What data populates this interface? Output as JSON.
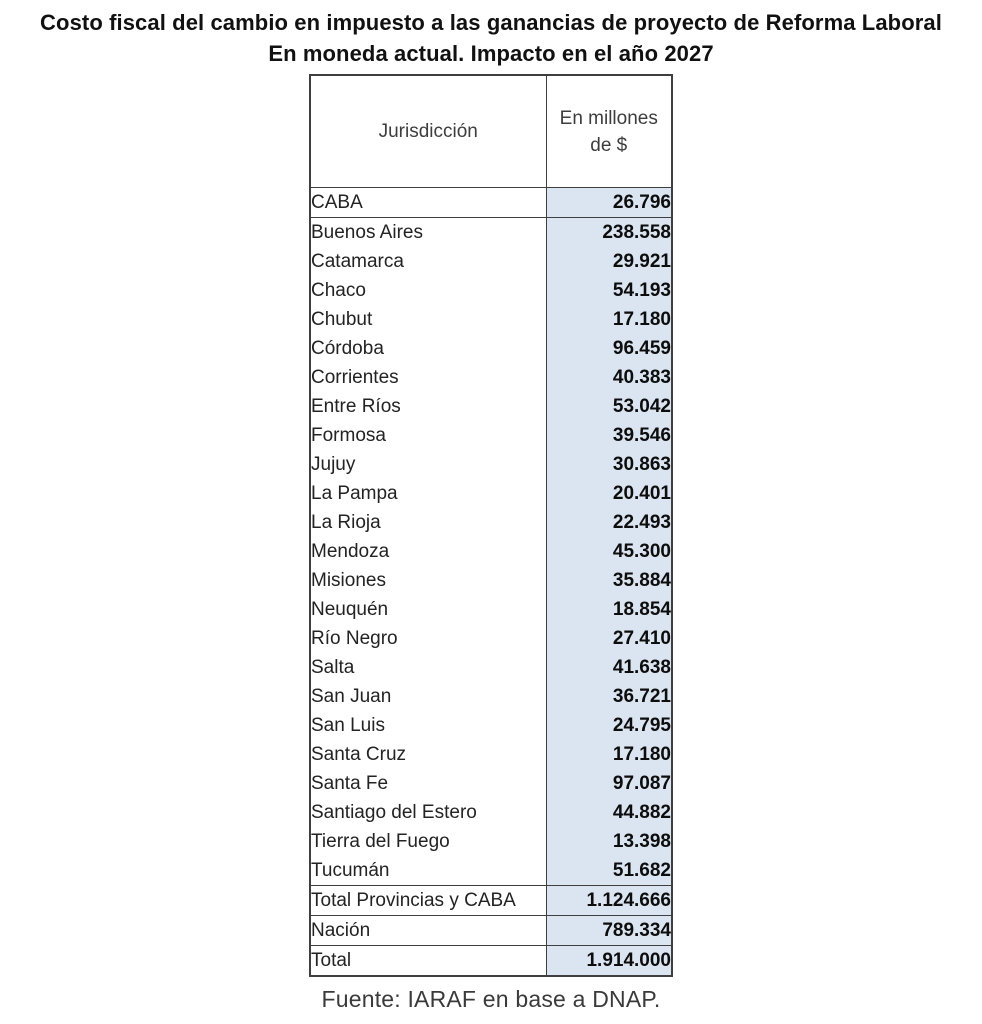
{
  "header": {
    "title_line1": "Costo fiscal del cambio en impuesto a las ganancias de proyecto de Reforma Laboral",
    "title_line2": "En moneda actual. Impacto en el año 2027"
  },
  "table": {
    "col1_header": "Jurisdicción",
    "col2_header": "En millones de $",
    "rows": [
      {
        "label": "CABA",
        "value": "26.796",
        "ruled": true
      },
      {
        "label": "Buenos Aires",
        "value": "238.558",
        "ruled": false
      },
      {
        "label": "Catamarca",
        "value": "29.921",
        "ruled": false
      },
      {
        "label": "Chaco",
        "value": "54.193",
        "ruled": false
      },
      {
        "label": "Chubut",
        "value": "17.180",
        "ruled": false
      },
      {
        "label": "Córdoba",
        "value": "96.459",
        "ruled": false
      },
      {
        "label": "Corrientes",
        "value": "40.383",
        "ruled": false
      },
      {
        "label": "Entre Ríos",
        "value": "53.042",
        "ruled": false
      },
      {
        "label": "Formosa",
        "value": "39.546",
        "ruled": false
      },
      {
        "label": "Jujuy",
        "value": "30.863",
        "ruled": false
      },
      {
        "label": "La Pampa",
        "value": "20.401",
        "ruled": false
      },
      {
        "label": "La Rioja",
        "value": "22.493",
        "ruled": false
      },
      {
        "label": "Mendoza",
        "value": "45.300",
        "ruled": false
      },
      {
        "label": "Misiones",
        "value": "35.884",
        "ruled": false
      },
      {
        "label": "Neuquén",
        "value": "18.854",
        "ruled": false
      },
      {
        "label": "Río Negro",
        "value": "27.410",
        "ruled": false
      },
      {
        "label": "Salta",
        "value": "41.638",
        "ruled": false
      },
      {
        "label": "San Juan",
        "value": "36.721",
        "ruled": false
      },
      {
        "label": "San Luis",
        "value": "24.795",
        "ruled": false
      },
      {
        "label": "Santa Cruz",
        "value": "17.180",
        "ruled": false
      },
      {
        "label": "Santa Fe",
        "value": "97.087",
        "ruled": false
      },
      {
        "label": "Santiago del Estero",
        "value": "44.882",
        "ruled": false
      },
      {
        "label": "Tierra del Fuego",
        "value": "13.398",
        "ruled": false
      },
      {
        "label": "Tucumán",
        "value": "51.682",
        "ruled": false
      },
      {
        "label": "Total Provincias y CABA",
        "value": "1.124.666",
        "ruled": true
      },
      {
        "label": "Nación",
        "value": "789.334",
        "ruled": true
      },
      {
        "label": "Total",
        "value": "1.914.000",
        "ruled": true
      }
    ]
  },
  "footer": {
    "source": "Fuente: IARAF en base a DNAP."
  },
  "colors": {
    "value_column_bg": "#dbe5f1",
    "table_border": "#3f3f3f"
  },
  "chart_data": {
    "type": "table",
    "title": "Costo fiscal del cambio en impuesto a las ganancias de proyecto de Reforma Laboral",
    "subtitle": "En moneda actual. Impacto en el año 2027",
    "columns": [
      "Jurisdicción",
      "En millones de $"
    ],
    "unit": "millones de $ (moneda actual, año 2027)",
    "rows": [
      [
        "CABA",
        26796
      ],
      [
        "Buenos Aires",
        238558
      ],
      [
        "Catamarca",
        29921
      ],
      [
        "Chaco",
        54193
      ],
      [
        "Chubut",
        17180
      ],
      [
        "Córdoba",
        96459
      ],
      [
        "Corrientes",
        40383
      ],
      [
        "Entre Ríos",
        53042
      ],
      [
        "Formosa",
        39546
      ],
      [
        "Jujuy",
        30863
      ],
      [
        "La Pampa",
        20401
      ],
      [
        "La Rioja",
        22493
      ],
      [
        "Mendoza",
        45300
      ],
      [
        "Misiones",
        35884
      ],
      [
        "Neuquén",
        18854
      ],
      [
        "Río Negro",
        27410
      ],
      [
        "Salta",
        41638
      ],
      [
        "San Juan",
        36721
      ],
      [
        "San Luis",
        24795
      ],
      [
        "Santa Cruz",
        17180
      ],
      [
        "Santa Fe",
        97087
      ],
      [
        "Santiago del Estero",
        44882
      ],
      [
        "Tierra del Fuego",
        13398
      ],
      [
        "Tucumán",
        51682
      ],
      [
        "Total Provincias y CABA",
        1124666
      ],
      [
        "Nación",
        789334
      ],
      [
        "Total",
        1914000
      ]
    ],
    "source": "Fuente: IARAF en base a DNAP."
  }
}
